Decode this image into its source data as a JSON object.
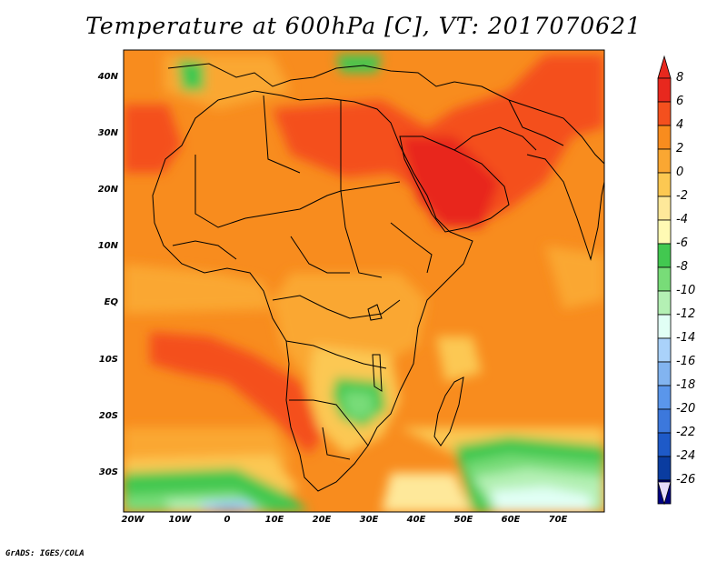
{
  "title": "Temperature at 600hPa [C], VT: 2017070621",
  "credit": "GrADS: IGES/COLA",
  "map": {
    "type": "filled-contour",
    "lat_labels": [
      "40N",
      "30N",
      "20N",
      "10N",
      "EQ",
      "10S",
      "20S",
      "30S"
    ],
    "lon_labels": [
      "20W",
      "10W",
      "0",
      "10E",
      "20E",
      "30E",
      "40E",
      "50E",
      "60E",
      "70E"
    ],
    "lat_range": [
      -36,
      45
    ],
    "lon_range": [
      -22,
      80
    ]
  },
  "colorbar": {
    "labels": [
      "8",
      "6",
      "4",
      "2",
      "0",
      "-2",
      "-4",
      "-6",
      "-8",
      "-10",
      "-12",
      "-14",
      "-16",
      "-18",
      "-20",
      "-22",
      "-24",
      "-26"
    ],
    "colors": [
      "#e8281e",
      "#f4501e",
      "#f88c1e",
      "#faa732",
      "#fcc852",
      "#fee89a",
      "#fffab4",
      "#42c850",
      "#78dc78",
      "#b4f0b4",
      "#e1fff5",
      "#aad2fa",
      "#82b4f0",
      "#5a96eb",
      "#3c78dc",
      "#1e5ac8",
      "#0a3ca0",
      "#000082",
      "#e6dcfa"
    ]
  }
}
